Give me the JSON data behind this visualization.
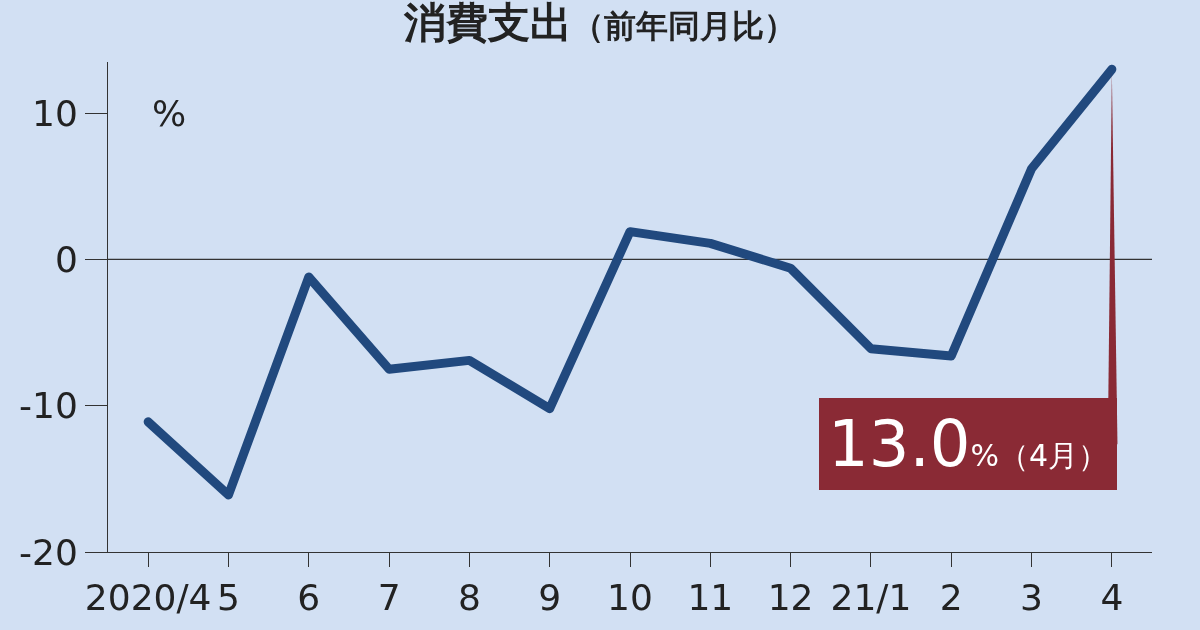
{
  "chart_data": {
    "type": "line",
    "title": "消費支出（前年同月比）",
    "ylabel": "%",
    "categories": [
      "2020/4",
      "5",
      "6",
      "7",
      "8",
      "9",
      "10",
      "11",
      "12",
      "21/1",
      "2",
      "3",
      "4"
    ],
    "series": [
      {
        "color": "#21497e",
        "values": [
          -11.1,
          -16.1,
          -1.2,
          -7.5,
          -6.9,
          -10.2,
          1.9,
          1.1,
          -0.6,
          -6.1,
          -6.6,
          6.2,
          13.0
        ]
      }
    ],
    "ylim": [
      -20,
      13.5
    ],
    "yticks": [
      -20,
      -10,
      0,
      10
    ],
    "ref_lines": [
      {
        "axis": "y",
        "value": 0,
        "color": "#333333"
      }
    ],
    "annotations": [
      {
        "text": "13.0%（4月）",
        "x": "4",
        "y": 13.0
      }
    ],
    "grid": false,
    "marker": "none",
    "line_style": "solid"
  }
}
